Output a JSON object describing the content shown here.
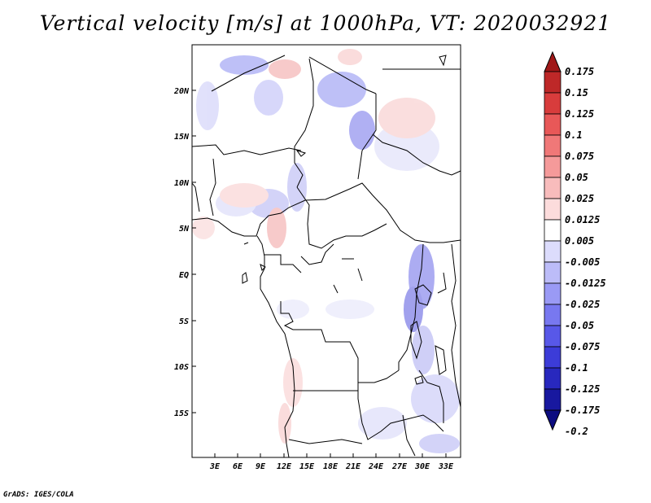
{
  "title": "Vertical velocity [m/s] at 1000hPa, VT: 2020032921",
  "footer": "GrADS: IGES/COLA",
  "map": {
    "lat_labels": [
      "20N",
      "15N",
      "10N",
      "5N",
      "EQ",
      "5S",
      "10S",
      "15S"
    ],
    "lon_labels": [
      "3E",
      "6E",
      "9E",
      "12E",
      "15E",
      "18E",
      "21E",
      "24E",
      "27E",
      "30E",
      "33E"
    ],
    "lat_range": [
      -19.8,
      24.5
    ],
    "lon_range": [
      0.5,
      34.5
    ]
  },
  "colorbar": {
    "labels": [
      "0.175",
      "0.15",
      "0.125",
      "0.1",
      "0.075",
      "0.05",
      "0.025",
      "0.0125",
      "0.005",
      "-0.005",
      "-0.0125",
      "-0.025",
      "-0.05",
      "-0.075",
      "-0.1",
      "-0.125",
      "-0.175",
      "-0.2"
    ],
    "colors": [
      "#a01818",
      "#be2828",
      "#d83c3c",
      "#e85858",
      "#f07878",
      "#f59a9a",
      "#f8bcbc",
      "#fcdcdc",
      "#ffffff",
      "#dcdcfc",
      "#bcbcf8",
      "#9a9af5",
      "#7878f0",
      "#5858e8",
      "#3c3cd8",
      "#2828be",
      "#18189f",
      "#0c0c80"
    ]
  }
}
